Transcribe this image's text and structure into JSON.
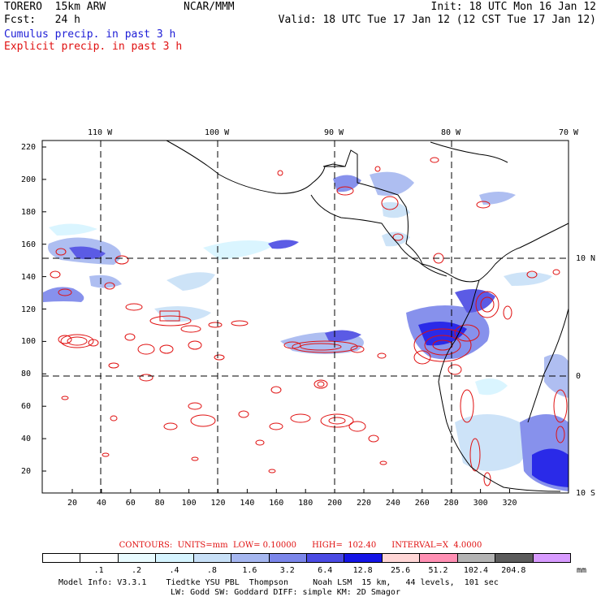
{
  "header": {
    "model": "TORERO  15km ARW",
    "org": "NCAR/MMM",
    "init": "Init: 18 UTC Mon 16 Jan 12",
    "fcst": "Fcst:   24 h",
    "valid": "Valid: 18 UTC Tue 17 Jan 12 (12 CST Tue 17 Jan 12)",
    "line1": "Cumulus precip. in past 3 h",
    "line2": "Explicit precip. in past 3 h"
  },
  "map": {
    "lon_labels": [
      "110 W",
      "100 W",
      "90 W",
      "80 W",
      "70 W"
    ],
    "lat_labels": [
      "10 N",
      "0",
      "10 S"
    ],
    "y_ticks": [
      "220",
      "200",
      "180",
      "160",
      "140",
      "120",
      "100",
      "80",
      "60",
      "40",
      "20"
    ],
    "x_ticks": [
      "20",
      "40",
      "60",
      "80",
      "100",
      "120",
      "140",
      "160",
      "180",
      "200",
      "220",
      "240",
      "260",
      "280",
      "300",
      "320"
    ]
  },
  "contour_info": "CONTOURS:  UNITS=mm  LOW= 0.10000      HIGH=  102.40      INTERVAL=X  4.0000",
  "colorbar": {
    "labels": [
      ".1",
      ".2",
      ".4",
      ".8",
      "1.6",
      "3.2",
      "6.4",
      "12.8",
      "25.6",
      "51.2",
      "102.4",
      "204.8"
    ],
    "units": "mm",
    "colors": [
      "#ffffff",
      "#ffffff",
      "#e9fbff",
      "#d6f4ff",
      "#c8e0f7",
      "#a6b7f0",
      "#7b86ea",
      "#4a4ae3",
      "#1414e6",
      "#ffd6d6",
      "#ff8fb3",
      "#b4b4b4",
      "#5c5c5c",
      "#d89bff"
    ]
  },
  "footer": {
    "line1": "Model Info: V3.3.1    Tiedtke YSU PBL  Thompson     Noah LSM  15 km,   44 levels,  101 sec",
    "line2": "LW: Godd SW: Goddard DIFF: simple KM: 2D Smagor"
  },
  "colors": {
    "cumulus": "#1d1dd6",
    "explicit": "#e01010",
    "coast": "#000000",
    "grid": "#000000"
  }
}
